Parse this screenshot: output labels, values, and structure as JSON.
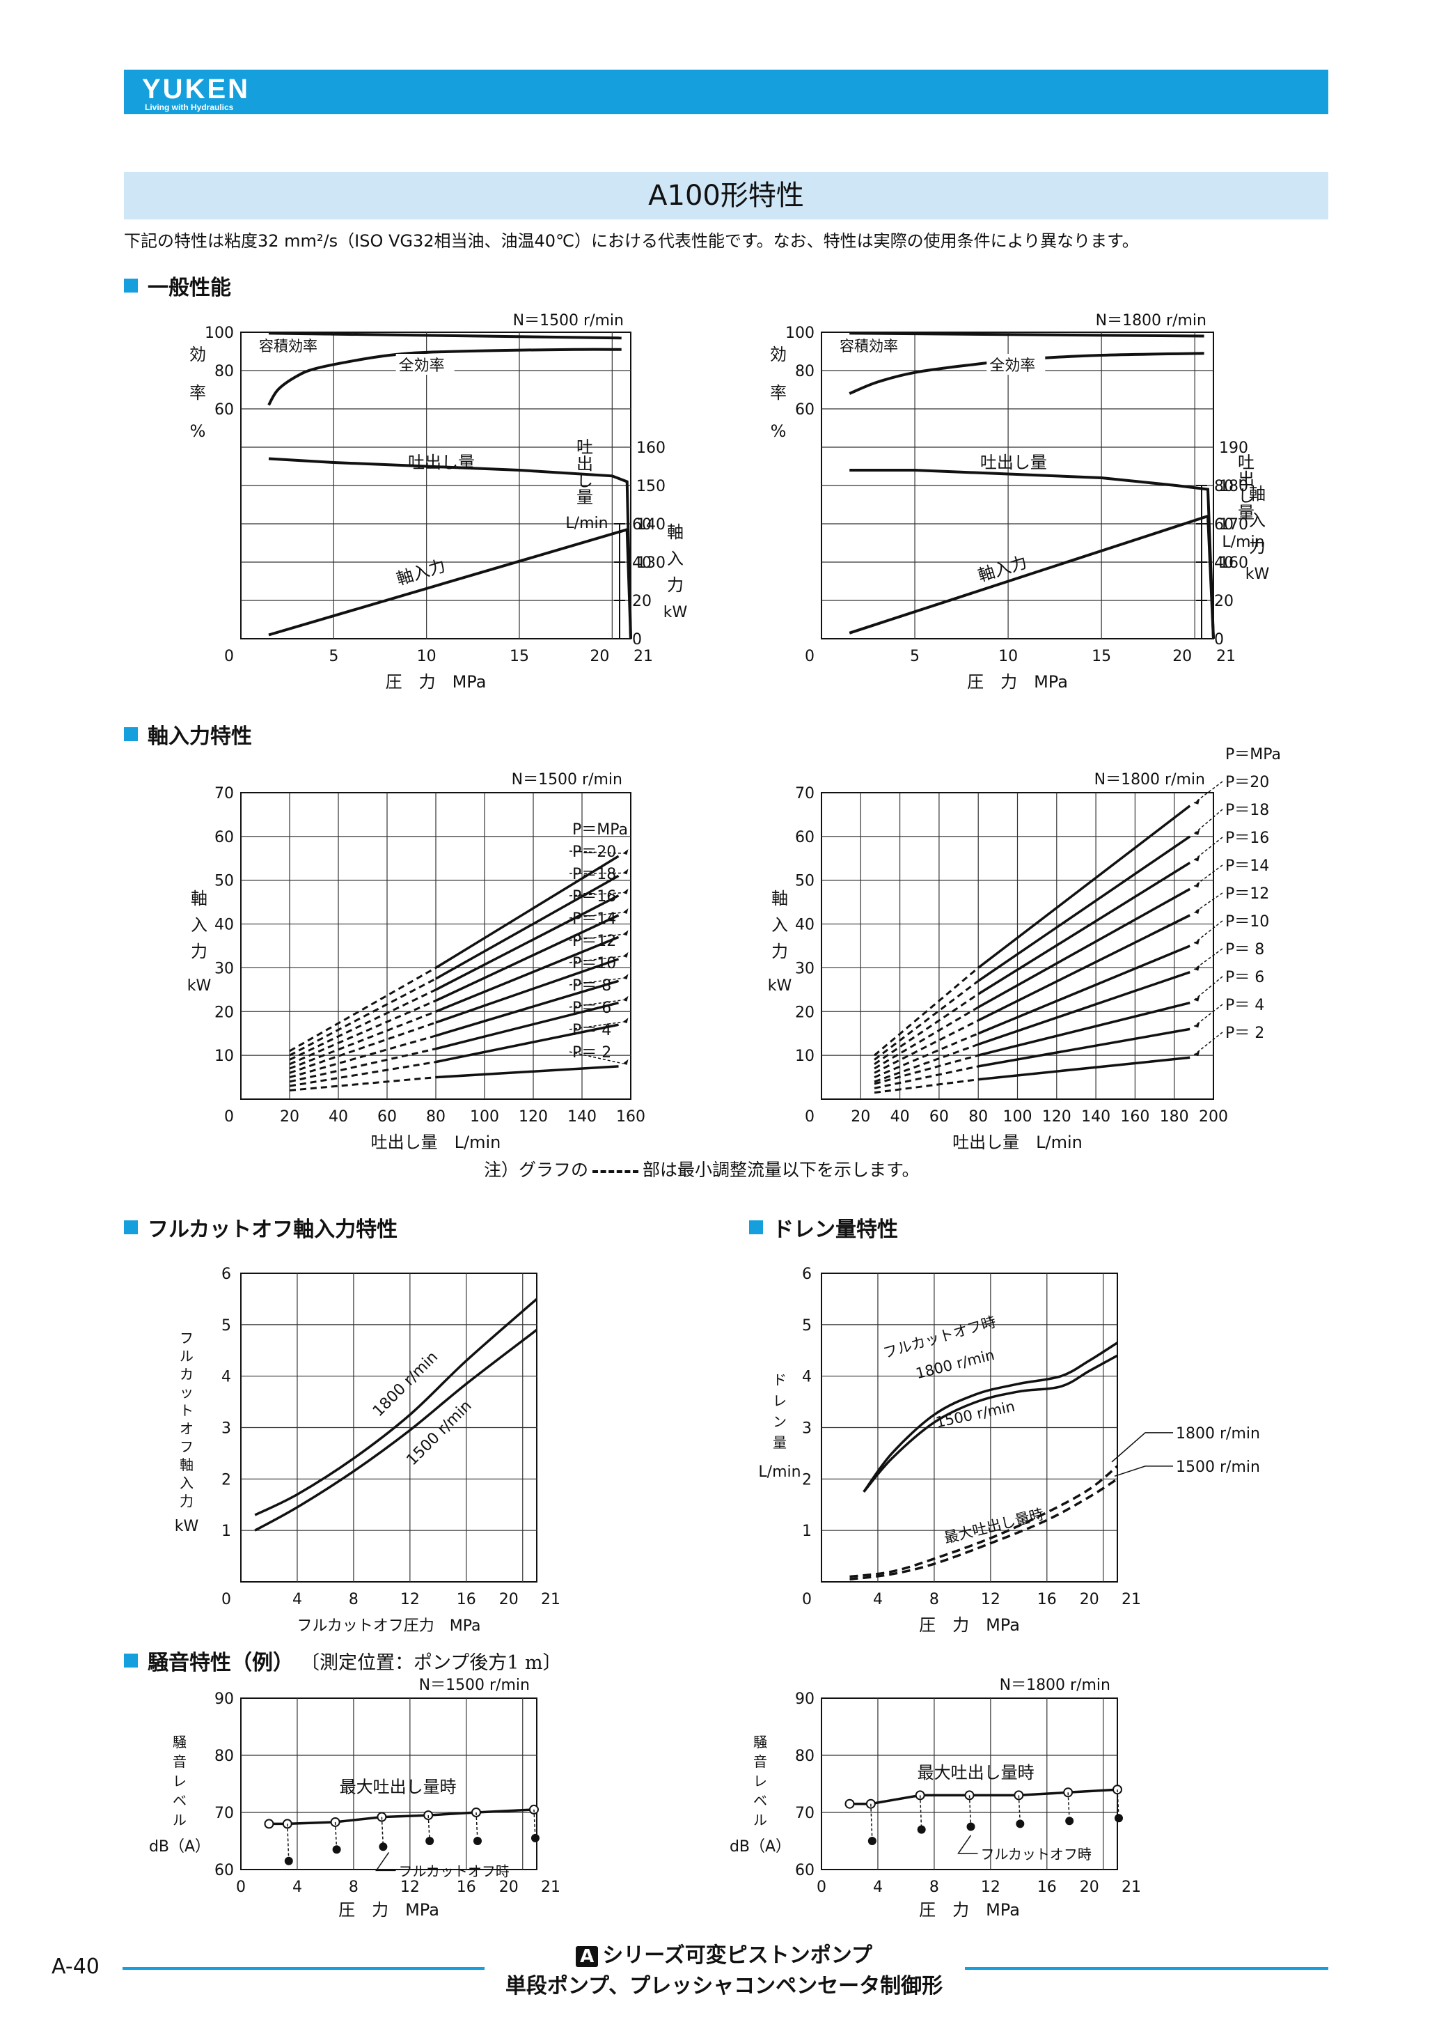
{
  "header": {
    "logo": "YUKEN",
    "tagline": "Living with Hydraulics"
  },
  "page_title": "A100形特性",
  "intro": "下記の特性は粘度32 mm²/s（ISO VG32相当油、油温40℃）における代表性能です。なお、特性は実際の使用条件により異なります。",
  "sections": {
    "general": "一般性能",
    "shaft_input": "軸入力特性",
    "fullcut": "フルカットオフ軸入力特性",
    "drain": "ドレン量特性",
    "noise": "騒音特性（例）",
    "noise_note": "〔測定位置：ポンプ後方1 m〕"
  },
  "graph_note": {
    "before": "注）グラフの",
    "after": "部は最小調整流量以下を示します。"
  },
  "footer": {
    "page_number": "A-40",
    "series_mark": "A",
    "series_line1": "シリーズ可変ピストンポンプ",
    "series_line2": "単段ポンプ、プレッシャコンペンセータ制御形"
  },
  "chart_data": [
    {
      "id": "general_1500",
      "type": "line",
      "speed": "N＝1500 r/min",
      "xlabel": "圧　力　MPa",
      "xlim": [
        0,
        21
      ],
      "x_ticks": [
        "0",
        "5",
        "10",
        "15",
        "20",
        "21"
      ],
      "eff_axis": {
        "label": [
          "効",
          "率",
          "%"
        ],
        "ticks": [
          "100",
          "80",
          "60"
        ],
        "range": [
          0,
          100
        ]
      },
      "flow_axis": {
        "label": [
          "吐",
          "出",
          "し",
          "量"
        ],
        "unit": "L/min",
        "ticks": [
          "160",
          "150",
          "140",
          "130"
        ],
        "range": [
          110,
          170
        ]
      },
      "power_axis": {
        "label": [
          "軸",
          "入",
          "力",
          "kW"
        ],
        "ticks": [
          "60",
          "40",
          "20",
          "0"
        ],
        "range": [
          0,
          60
        ]
      },
      "curve_labels": {
        "vol": "容積効率",
        "total": "全効率",
        "flow": "吐出し量",
        "power": "軸入力"
      },
      "series": [
        {
          "axis": "eff",
          "x": [
            1.5,
            20.5
          ],
          "values": [
            99.5,
            97
          ]
        },
        {
          "axis": "eff",
          "x": [
            1.5,
            2,
            3,
            4,
            6,
            8,
            10,
            14,
            18,
            20.5
          ],
          "values": [
            62,
            70,
            77,
            81,
            85,
            88,
            89.5,
            90.5,
            91,
            91
          ]
        },
        {
          "axis": "flow",
          "x": [
            1.5,
            5,
            10,
            15,
            20,
            20.8,
            21
          ],
          "values": [
            157,
            156,
            155,
            154,
            152.5,
            151,
            110
          ]
        },
        {
          "axis": "power",
          "x": [
            1.5,
            20.8,
            21
          ],
          "values": [
            2,
            57,
            0
          ]
        }
      ]
    },
    {
      "id": "general_1800",
      "type": "line",
      "speed": "N＝1800 r/min",
      "xlabel": "圧　力　MPa",
      "xlim": [
        0,
        21
      ],
      "x_ticks": [
        "0",
        "5",
        "10",
        "15",
        "20",
        "21"
      ],
      "eff_axis": {
        "label": [
          "効",
          "率",
          "%"
        ],
        "ticks": [
          "100",
          "80",
          "60"
        ],
        "range": [
          0,
          100
        ]
      },
      "flow_axis": {
        "label": [
          "吐",
          "出",
          "し",
          "量"
        ],
        "unit": "L/min",
        "ticks": [
          "190",
          "180",
          "170",
          "160"
        ],
        "range": [
          140,
          200
        ]
      },
      "power_axis": {
        "label": [
          "軸",
          "入",
          "力",
          "kW"
        ],
        "ticks": [
          "80",
          "60",
          "40",
          "20",
          "0"
        ],
        "range": [
          0,
          80
        ]
      },
      "curve_labels": {
        "vol": "容積効率",
        "total": "全効率",
        "flow": "吐出し量",
        "power": "軸入力"
      },
      "series": [
        {
          "axis": "eff",
          "x": [
            1.5,
            20.5
          ],
          "values": [
            99.5,
            98
          ]
        },
        {
          "axis": "eff",
          "x": [
            1.5,
            3,
            5,
            8,
            11,
            15,
            20.5
          ],
          "values": [
            68,
            74,
            79,
            83,
            86,
            88,
            89
          ]
        },
        {
          "axis": "flow",
          "x": [
            1.5,
            5,
            10,
            15,
            19,
            20.7,
            21
          ],
          "values": [
            184,
            184,
            183,
            182,
            180,
            179,
            140
          ]
        },
        {
          "axis": "power",
          "x": [
            1.5,
            20.7,
            21
          ],
          "values": [
            3,
            64,
            0
          ]
        }
      ]
    },
    {
      "id": "shaft_1500",
      "type": "line",
      "speed": "N＝1500 r/min",
      "xlabel": "吐出し量　L/min",
      "ylabel": [
        "軸",
        "入",
        "力",
        "kW"
      ],
      "xlim": [
        0,
        160
      ],
      "ylim": [
        0,
        70
      ],
      "x_ticks": [
        "0",
        "20",
        "40",
        "60",
        "80",
        "100",
        "120",
        "140",
        "160"
      ],
      "y_ticks": [
        "10",
        "20",
        "30",
        "40",
        "50",
        "60",
        "70"
      ],
      "legend_header": "P＝MPa",
      "min_flow": 80,
      "series": [
        {
          "name": "P＝20",
          "x": [
            20,
            80,
            155
          ],
          "values": [
            11,
            30,
            55.5
          ]
        },
        {
          "name": "P＝18",
          "x": [
            20,
            80,
            155
          ],
          "values": [
            10,
            27.5,
            51
          ]
        },
        {
          "name": "P＝16",
          "x": [
            20,
            80,
            155
          ],
          "values": [
            9,
            25,
            46.5
          ]
        },
        {
          "name": "P＝14",
          "x": [
            20,
            80,
            155
          ],
          "values": [
            8,
            22.5,
            42
          ]
        },
        {
          "name": "P＝12",
          "x": [
            20,
            80,
            155
          ],
          "values": [
            7,
            20,
            37
          ]
        },
        {
          "name": "P＝10",
          "x": [
            20,
            80,
            155
          ],
          "values": [
            6,
            17.5,
            32
          ]
        },
        {
          "name": "P＝ 8",
          "x": [
            20,
            80,
            155
          ],
          "values": [
            5,
            14.5,
            27
          ]
        },
        {
          "name": "P＝ 6",
          "x": [
            20,
            80,
            155
          ],
          "values": [
            4,
            11.5,
            22
          ]
        },
        {
          "name": "P＝ 4",
          "x": [
            20,
            80,
            155
          ],
          "values": [
            3,
            8.5,
            17
          ]
        },
        {
          "name": "P＝ 2",
          "x": [
            20,
            80,
            155
          ],
          "values": [
            2,
            5,
            7.5
          ]
        }
      ]
    },
    {
      "id": "shaft_1800",
      "type": "line",
      "speed": "N＝1800 r/min",
      "xlabel": "吐出し量　L/min",
      "ylabel": [
        "軸",
        "入",
        "力",
        "kW"
      ],
      "xlim": [
        0,
        200
      ],
      "ylim": [
        0,
        70
      ],
      "x_ticks": [
        "0",
        "20",
        "40",
        "60",
        "80",
        "100",
        "120",
        "140",
        "160",
        "180",
        "200"
      ],
      "y_ticks": [
        "10",
        "20",
        "30",
        "40",
        "50",
        "60",
        "70"
      ],
      "legend_header": "P＝MPa",
      "min_flow": 80,
      "series": [
        {
          "name": "P＝20",
          "x": [
            27,
            80,
            188
          ],
          "values": [
            10,
            30,
            67
          ]
        },
        {
          "name": "P＝18",
          "x": [
            27,
            80,
            188
          ],
          "values": [
            9,
            27,
            60
          ]
        },
        {
          "name": "P＝16",
          "x": [
            27,
            80,
            188
          ],
          "values": [
            8,
            24,
            54
          ]
        },
        {
          "name": "P＝14",
          "x": [
            27,
            80,
            188
          ],
          "values": [
            7,
            21,
            48
          ]
        },
        {
          "name": "P＝12",
          "x": [
            27,
            80,
            188
          ],
          "values": [
            6,
            18,
            42
          ]
        },
        {
          "name": "P＝10",
          "x": [
            27,
            80,
            188
          ],
          "values": [
            5,
            15,
            35
          ]
        },
        {
          "name": "P＝ 8",
          "x": [
            27,
            80,
            188
          ],
          "values": [
            4,
            12.5,
            29
          ]
        },
        {
          "name": "P＝ 6",
          "x": [
            27,
            80,
            188
          ],
          "values": [
            3.5,
            10,
            22
          ]
        },
        {
          "name": "P＝ 4",
          "x": [
            27,
            80,
            188
          ],
          "values": [
            2.5,
            7.5,
            16
          ]
        },
        {
          "name": "P＝ 2",
          "x": [
            27,
            80,
            188
          ],
          "values": [
            1.5,
            4.5,
            9.5
          ]
        }
      ]
    },
    {
      "id": "fullcut",
      "type": "line",
      "xlabel": "フルカットオフ圧力　MPa",
      "ylabel": [
        "フ",
        "ル",
        "カ",
        "ッ",
        "ト",
        "オ",
        "フ",
        "軸",
        "入",
        "力",
        "kW"
      ],
      "xlim": [
        0,
        21
      ],
      "ylim": [
        0,
        6
      ],
      "x_ticks": [
        "0",
        "4",
        "8",
        "12",
        "16",
        "20",
        "21"
      ],
      "y_ticks": [
        "1",
        "2",
        "3",
        "4",
        "5",
        "6"
      ],
      "series": [
        {
          "name": "1800 r/min",
          "x": [
            1,
            4,
            8,
            12,
            16,
            21
          ],
          "values": [
            1.3,
            1.7,
            2.4,
            3.25,
            4.3,
            5.5
          ]
        },
        {
          "name": "1500 r/min",
          "x": [
            1,
            4,
            8,
            12,
            16,
            21
          ],
          "values": [
            1.0,
            1.45,
            2.15,
            2.95,
            3.85,
            4.9
          ]
        }
      ]
    },
    {
      "id": "drain",
      "type": "line",
      "xlabel": "圧　力　MPa",
      "ylabel": [
        "ド",
        "レ",
        "ン",
        "量",
        "L/min"
      ],
      "xlim": [
        0,
        21
      ],
      "ylim": [
        0,
        6
      ],
      "x_ticks": [
        "0",
        "4",
        "8",
        "12",
        "16",
        "20",
        "21"
      ],
      "y_ticks": [
        "1",
        "2",
        "3",
        "4",
        "5",
        "6"
      ],
      "group_labels": {
        "cutoff": "フルカットオフ時",
        "maxflow": "最大吐出し量時"
      },
      "series": [
        {
          "name": "1800 r/min",
          "group": "cutoff",
          "x": [
            3,
            5,
            8,
            11,
            14,
            17,
            19,
            21
          ],
          "values": [
            1.75,
            2.5,
            3.25,
            3.65,
            3.85,
            4.0,
            4.3,
            4.65
          ]
        },
        {
          "name": "1500 r/min",
          "group": "cutoff",
          "x": [
            3,
            5,
            8,
            11,
            14,
            17,
            19,
            21
          ],
          "values": [
            1.75,
            2.4,
            3.1,
            3.5,
            3.7,
            3.8,
            4.1,
            4.4
          ]
        },
        {
          "name": "1800 r/min",
          "group": "maxflow",
          "x": [
            2,
            5,
            8,
            12,
            16,
            19,
            21
          ],
          "values": [
            0.1,
            0.2,
            0.45,
            0.85,
            1.35,
            1.8,
            2.25
          ]
        },
        {
          "name": "1500 r/min",
          "group": "maxflow",
          "x": [
            2,
            5,
            8,
            12,
            16,
            19,
            21
          ],
          "values": [
            0.05,
            0.15,
            0.35,
            0.75,
            1.2,
            1.65,
            2.0
          ]
        }
      ]
    },
    {
      "id": "noise_1500",
      "type": "line",
      "speed": "N＝1500 r/min",
      "xlabel": "圧　力　MPa",
      "ylabel": [
        "騒",
        "音",
        "レ",
        "ベ",
        "ル",
        "dB（A）"
      ],
      "xlim": [
        0,
        21
      ],
      "ylim": [
        60,
        90
      ],
      "x_ticks": [
        "0",
        "4",
        "8",
        "12",
        "16",
        "20",
        "21"
      ],
      "y_ticks": [
        "60",
        "70",
        "80",
        "90"
      ],
      "labels": {
        "max": "最大吐出し量時",
        "cutoff": "フルカットオフ時"
      },
      "series": [
        {
          "name": "最大吐出し量時",
          "x": [
            2,
            3.3,
            6.7,
            10,
            13.3,
            16.7,
            20.8
          ],
          "values": [
            68,
            68,
            68.3,
            69.2,
            69.5,
            70,
            70.5
          ]
        },
        {
          "name": "フルカットオフ時",
          "x": [
            3.3,
            6.7,
            10,
            13.3,
            16.7,
            20.8
          ],
          "values": [
            61.5,
            63.5,
            64,
            65,
            65,
            65.5
          ]
        }
      ]
    },
    {
      "id": "noise_1800",
      "type": "line",
      "speed": "N＝1800 r/min",
      "xlabel": "圧　力　MPa",
      "ylabel": [
        "騒",
        "音",
        "レ",
        "ベ",
        "ル",
        "dB（A）"
      ],
      "xlim": [
        0,
        21
      ],
      "ylim": [
        60,
        90
      ],
      "x_ticks": [
        "0",
        "4",
        "8",
        "12",
        "16",
        "20",
        "21"
      ],
      "y_ticks": [
        "60",
        "70",
        "80",
        "90"
      ],
      "labels": {
        "max": "最大吐出し量時",
        "cutoff": "フルカットオフ時"
      },
      "series": [
        {
          "name": "最大吐出し量時",
          "x": [
            2,
            3.5,
            7,
            10.5,
            14,
            17.5,
            21
          ],
          "values": [
            71.5,
            71.5,
            73,
            73,
            73,
            73.5,
            74
          ]
        },
        {
          "name": "フルカットオフ時",
          "x": [
            3.5,
            7,
            10.5,
            14,
            17.5,
            21
          ],
          "values": [
            65,
            67,
            67.5,
            68,
            68.5,
            69
          ]
        }
      ]
    }
  ]
}
